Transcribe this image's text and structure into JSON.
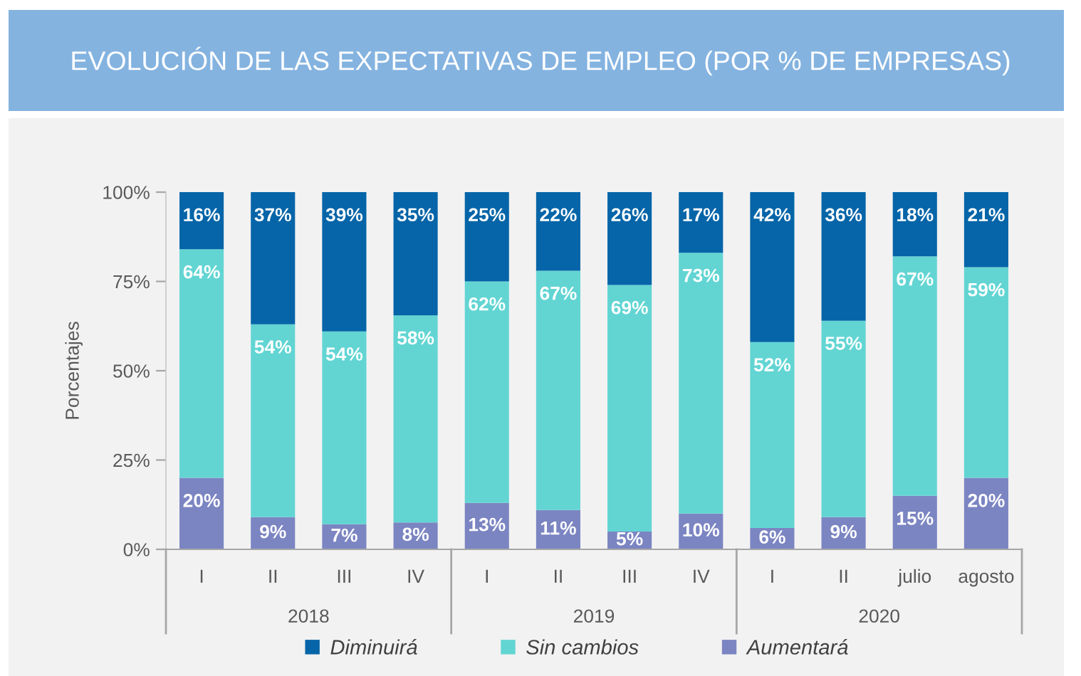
{
  "chart_data": {
    "type": "bar",
    "title": "EVOLUCIÓN DE LAS EXPECTATIVAS DE EMPLEO (POR % DE EMPRESAS)",
    "ylabel": "Porcentajes",
    "categories": [
      "I",
      "II",
      "III",
      "IV",
      "I",
      "II",
      "III",
      "IV",
      "I",
      "II",
      "julio",
      "agosto"
    ],
    "annotations": [
      "2018",
      "2019",
      "2020"
    ],
    "stacked": true,
    "series": [
      {
        "name": "Aumentará",
        "color": "#7b85c2",
        "values": [
          20,
          9,
          7,
          7.5,
          13,
          11,
          5,
          10,
          6,
          9,
          15,
          20
        ],
        "value_labels": [
          "20%",
          "9%",
          "7%",
          "8%",
          "13%",
          "11%",
          "5%",
          "10%",
          "6%",
          "9%",
          "15%",
          "20%"
        ]
      },
      {
        "name": "Sin cambios",
        "color": "#62d5d3",
        "values": [
          64,
          54,
          54,
          58,
          62,
          67,
          69,
          73,
          52,
          55,
          67,
          59
        ],
        "value_labels": [
          "64%",
          "54%",
          "54%",
          "58%",
          "62%",
          "67%",
          "69%",
          "73%",
          "52%",
          "55%",
          "67%",
          "59%"
        ]
      },
      {
        "name": "Diminuirá",
        "color": "#0565a8",
        "values": [
          16,
          37,
          39,
          34.5,
          25,
          22,
          26,
          17,
          42,
          36,
          18,
          21
        ],
        "value_labels": [
          "16%",
          "37%",
          "39%",
          "35%",
          "25%",
          "22%",
          "26%",
          "17%",
          "42%",
          "36%",
          "18%",
          "21%"
        ]
      }
    ],
    "ylim": [
      0,
      100
    ],
    "yticks": [
      {
        "value": 0,
        "label": "0%"
      },
      {
        "value": 25,
        "label": "25%"
      },
      {
        "value": 50,
        "label": "50%"
      },
      {
        "value": 75,
        "label": "75%"
      },
      {
        "value": 100,
        "label": "100%"
      }
    ],
    "legend": "bottom"
  }
}
